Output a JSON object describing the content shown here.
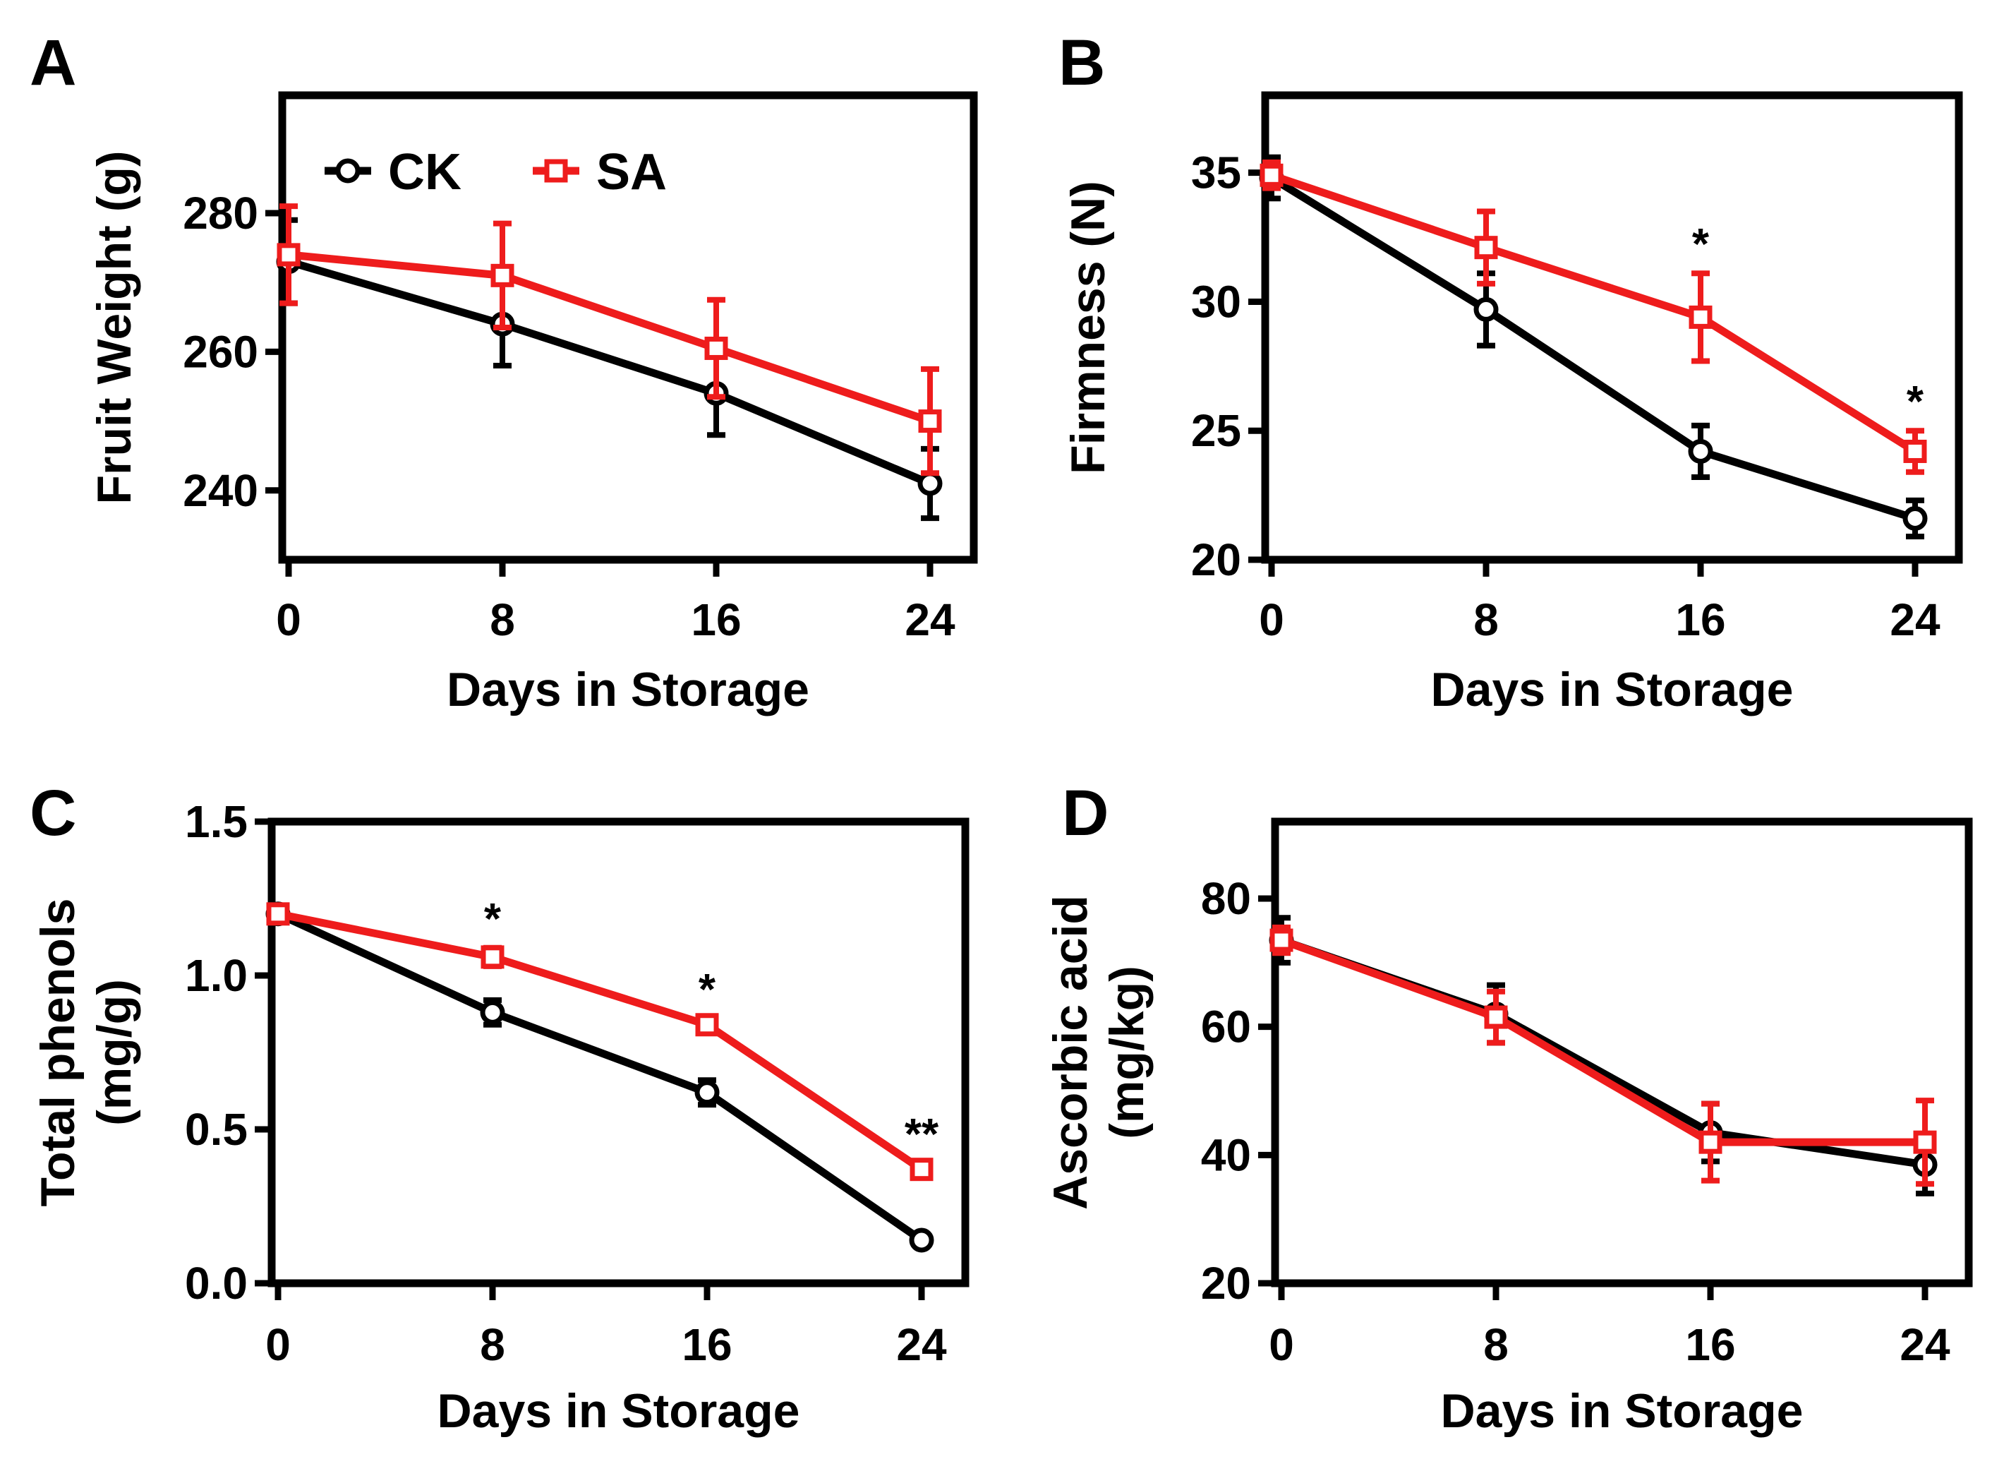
{
  "figure": {
    "legend": [
      {
        "name": "CK",
        "color": "#000000",
        "marker": "circle"
      },
      {
        "name": "SA",
        "color": "#ee1c1c",
        "marker": "square"
      }
    ]
  },
  "chart_data": [
    {
      "panel": "A",
      "type": "line",
      "xlabel": "Days in Storage",
      "ylabel": "Fruit Weight  (g)",
      "x": [
        0,
        8,
        16,
        24
      ],
      "xticks": [
        "0",
        "8",
        "16",
        "24"
      ],
      "xlim": [
        0,
        24
      ],
      "ylim": [
        230,
        297
      ],
      "yticks": [
        240,
        260,
        280
      ],
      "ytick_labels": [
        "240",
        "260",
        "280"
      ],
      "grid": false,
      "legend_position": "top-left",
      "series": [
        {
          "name": "CK",
          "color": "#000000",
          "marker": "circle",
          "values": [
            273,
            264,
            254,
            241
          ],
          "errors": [
            6,
            6,
            6,
            5
          ]
        },
        {
          "name": "SA",
          "color": "#ee1c1c",
          "marker": "square",
          "values": [
            274,
            271,
            260.5,
            250
          ],
          "errors": [
            7,
            7.5,
            7,
            7.5
          ]
        }
      ],
      "annotations": []
    },
    {
      "panel": "B",
      "type": "line",
      "xlabel": "Days in Storage",
      "ylabel": "Firmness (N)",
      "x": [
        0,
        8,
        16,
        24
      ],
      "xticks": [
        "0",
        "8",
        "16",
        "24"
      ],
      "xlim": [
        0,
        24
      ],
      "ylim": [
        20,
        38
      ],
      "yticks": [
        20,
        25,
        30,
        35
      ],
      "ytick_labels": [
        "20",
        "25",
        "30",
        "35"
      ],
      "grid": false,
      "series": [
        {
          "name": "CK",
          "color": "#000000",
          "marker": "circle",
          "values": [
            34.8,
            29.7,
            24.2,
            21.6
          ],
          "errors": [
            0.8,
            1.4,
            1.0,
            0.7
          ]
        },
        {
          "name": "SA",
          "color": "#ee1c1c",
          "marker": "square",
          "values": [
            34.9,
            32.1,
            29.4,
            24.2
          ],
          "errors": [
            0.5,
            1.4,
            1.7,
            0.8
          ]
        }
      ],
      "annotations": [
        {
          "x": 16,
          "y": 31.1,
          "text": "*"
        },
        {
          "x": 24,
          "y": 25.0,
          "text": "*"
        }
      ]
    },
    {
      "panel": "C",
      "type": "line",
      "xlabel": "Days in Storage",
      "ylabel_lines": [
        "Total phenols",
        "(mg/g)"
      ],
      "x": [
        0,
        8,
        16,
        24
      ],
      "xticks": [
        "0",
        "8",
        "16",
        "24"
      ],
      "xlim": [
        0,
        24
      ],
      "ylim": [
        0,
        1.5
      ],
      "yticks": [
        0,
        0.5,
        1.0,
        1.5
      ],
      "ytick_labels": [
        "0.0",
        "0.5",
        "1.0",
        "1.5"
      ],
      "grid": false,
      "series": [
        {
          "name": "CK",
          "color": "#000000",
          "marker": "circle",
          "values": [
            1.2,
            0.88,
            0.62,
            0.14
          ],
          "errors": [
            0.02,
            0.04,
            0.04,
            0.01
          ]
        },
        {
          "name": "SA",
          "color": "#ee1c1c",
          "marker": "square",
          "values": [
            1.2,
            1.06,
            0.84,
            0.37
          ],
          "errors": [
            0.02,
            0.03,
            0.02,
            0.02
          ]
        }
      ],
      "annotations": [
        {
          "x": 8,
          "y": 1.09,
          "text": "*"
        },
        {
          "x": 16,
          "y": 0.86,
          "text": "*"
        },
        {
          "x": 24,
          "y": 0.39,
          "text": "**"
        }
      ]
    },
    {
      "panel": "D",
      "type": "line",
      "xlabel": "Days in Storage",
      "ylabel_lines": [
        "Ascorbic acid",
        "(mg/kg)"
      ],
      "x": [
        0,
        8,
        16,
        24
      ],
      "xticks": [
        "0",
        "8",
        "16",
        "24"
      ],
      "xlim": [
        0,
        24
      ],
      "ylim": [
        20,
        92
      ],
      "yticks": [
        20,
        40,
        60,
        80
      ],
      "ytick_labels": [
        "20",
        "40",
        "60",
        "80"
      ],
      "grid": false,
      "series": [
        {
          "name": "CK",
          "color": "#000000",
          "marker": "circle",
          "values": [
            73.5,
            62,
            43.5,
            38.5
          ],
          "errors": [
            3.5,
            4.5,
            4.5,
            4.5
          ]
        },
        {
          "name": "SA",
          "color": "#ee1c1c",
          "marker": "square",
          "values": [
            73.5,
            61.5,
            42,
            42
          ],
          "errors": [
            2,
            4,
            6,
            6.5
          ]
        }
      ],
      "annotations": []
    }
  ]
}
